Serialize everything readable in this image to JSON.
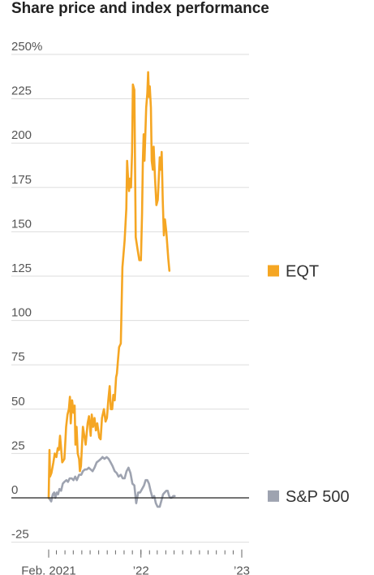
{
  "chart_data": {
    "type": "line",
    "title": "Share price and index performance",
    "y_unit_suffix": "%",
    "ylim": [
      -25,
      250
    ],
    "yticks": [
      250,
      225,
      200,
      175,
      150,
      125,
      100,
      75,
      50,
      25,
      0,
      -25
    ],
    "grid": true,
    "legend_placement": "right, at series end",
    "x_range": [
      "2021-02-01",
      "2023-01-01"
    ],
    "x_ticks": [
      {
        "date": "2021-02-01",
        "label": "Feb. 2021"
      },
      {
        "date": "2022-01-01",
        "label": "’22"
      },
      {
        "date": "2023-01-01",
        "label": "’23"
      }
    ],
    "series": [
      {
        "name": "EQT",
        "color": "#f5a623",
        "points": [
          [
            "2021-02-01",
            0
          ],
          [
            "2021-02-04",
            27
          ],
          [
            "2021-02-06",
            12
          ],
          [
            "2021-02-11",
            14
          ],
          [
            "2021-02-18",
            20
          ],
          [
            "2021-02-23",
            25
          ],
          [
            "2021-03-01",
            23
          ],
          [
            "2021-03-06",
            28
          ],
          [
            "2021-03-10",
            27
          ],
          [
            "2021-03-14",
            35
          ],
          [
            "2021-03-18",
            28
          ],
          [
            "2021-03-22",
            20
          ],
          [
            "2021-03-30",
            22
          ],
          [
            "2021-04-05",
            40
          ],
          [
            "2021-04-10",
            47
          ],
          [
            "2021-04-15",
            50
          ],
          [
            "2021-04-19",
            57
          ],
          [
            "2021-04-22",
            42
          ],
          [
            "2021-04-27",
            55
          ],
          [
            "2021-05-02",
            48
          ],
          [
            "2021-05-06",
            52
          ],
          [
            "2021-05-09",
            30
          ],
          [
            "2021-05-13",
            40
          ],
          [
            "2021-05-17",
            25
          ],
          [
            "2021-05-22",
            22
          ],
          [
            "2021-05-25",
            15
          ],
          [
            "2021-05-29",
            18
          ],
          [
            "2021-06-05",
            40
          ],
          [
            "2021-06-10",
            35
          ],
          [
            "2021-06-15",
            30
          ],
          [
            "2021-06-22",
            42
          ],
          [
            "2021-06-27",
            46
          ],
          [
            "2021-07-03",
            35
          ],
          [
            "2021-07-07",
            47
          ],
          [
            "2021-07-12",
            40
          ],
          [
            "2021-07-17",
            45
          ],
          [
            "2021-07-22",
            38
          ],
          [
            "2021-07-27",
            42
          ],
          [
            "2021-08-03",
            34
          ],
          [
            "2021-08-08",
            33
          ],
          [
            "2021-08-13",
            45
          ],
          [
            "2021-08-20",
            50
          ],
          [
            "2021-08-26",
            43
          ],
          [
            "2021-08-31",
            45
          ],
          [
            "2021-09-05",
            55
          ],
          [
            "2021-09-10",
            63
          ],
          [
            "2021-09-14",
            50
          ],
          [
            "2021-09-19",
            50
          ],
          [
            "2021-09-23",
            58
          ],
          [
            "2021-09-28",
            55
          ],
          [
            "2021-10-03",
            68
          ],
          [
            "2021-10-06",
            70
          ],
          [
            "2021-10-10",
            78
          ],
          [
            "2021-10-14",
            85
          ],
          [
            "2021-10-20",
            87
          ],
          [
            "2021-10-26",
            130
          ],
          [
            "2021-11-03",
            145
          ],
          [
            "2021-11-09",
            163
          ],
          [
            "2021-11-12",
            190
          ],
          [
            "2021-11-16",
            178
          ],
          [
            "2021-11-19",
            173
          ],
          [
            "2021-11-22",
            180
          ],
          [
            "2021-11-26",
            175
          ],
          [
            "2021-11-30",
            195
          ],
          [
            "2021-12-03",
            233
          ],
          [
            "2021-12-08",
            230
          ],
          [
            "2021-12-13",
            147
          ],
          [
            "2021-12-20",
            140
          ],
          [
            "2021-12-26",
            134
          ],
          [
            "2022-01-01",
            134
          ],
          [
            "2022-01-05",
            160
          ],
          [
            "2022-01-08",
            190
          ],
          [
            "2022-01-11",
            205
          ],
          [
            "2022-01-14",
            190
          ],
          [
            "2022-01-20",
            220
          ],
          [
            "2022-01-24",
            228
          ],
          [
            "2022-01-27",
            240
          ],
          [
            "2022-01-30",
            226
          ],
          [
            "2022-02-02",
            232
          ],
          [
            "2022-02-06",
            220
          ],
          [
            "2022-02-09",
            190
          ],
          [
            "2022-02-13",
            185
          ],
          [
            "2022-02-16",
            198
          ],
          [
            "2022-02-21",
            180
          ],
          [
            "2022-02-26",
            165
          ],
          [
            "2022-03-03",
            168
          ],
          [
            "2022-03-10",
            192
          ],
          [
            "2022-03-14",
            185
          ],
          [
            "2022-03-17",
            195
          ],
          [
            "2022-03-21",
            168
          ],
          [
            "2022-03-25",
            148
          ],
          [
            "2022-03-29",
            157
          ],
          [
            "2022-04-03",
            150
          ],
          [
            "2022-04-10",
            135
          ],
          [
            "2022-04-14",
            128
          ]
        ]
      },
      {
        "name": "S&P 500",
        "color": "#9ea3b0",
        "points": [
          [
            "2021-02-01",
            0
          ],
          [
            "2021-02-06",
            -1
          ],
          [
            "2021-02-10",
            -2
          ],
          [
            "2021-02-16",
            2
          ],
          [
            "2021-02-21",
            3
          ],
          [
            "2021-02-25",
            0
          ],
          [
            "2021-03-02",
            3
          ],
          [
            "2021-03-07",
            2
          ],
          [
            "2021-03-12",
            5
          ],
          [
            "2021-03-18",
            4
          ],
          [
            "2021-03-24",
            8
          ],
          [
            "2021-03-30",
            9
          ],
          [
            "2021-04-06",
            10
          ],
          [
            "2021-04-12",
            9
          ],
          [
            "2021-04-18",
            11
          ],
          [
            "2021-04-25",
            11
          ],
          [
            "2021-05-02",
            10
          ],
          [
            "2021-05-08",
            12
          ],
          [
            "2021-05-14",
            10
          ],
          [
            "2021-05-22",
            13
          ],
          [
            "2021-05-30",
            13
          ],
          [
            "2021-06-05",
            15
          ],
          [
            "2021-06-12",
            16
          ],
          [
            "2021-06-19",
            16
          ],
          [
            "2021-06-26",
            17
          ],
          [
            "2021-07-03",
            16
          ],
          [
            "2021-07-10",
            15
          ],
          [
            "2021-07-17",
            17
          ],
          [
            "2021-07-25",
            20
          ],
          [
            "2021-08-02",
            21
          ],
          [
            "2021-08-09",
            22
          ],
          [
            "2021-08-15",
            23
          ],
          [
            "2021-08-22",
            22
          ],
          [
            "2021-08-30",
            23
          ],
          [
            "2021-09-06",
            22
          ],
          [
            "2021-09-13",
            20
          ],
          [
            "2021-09-20",
            18
          ],
          [
            "2021-09-28",
            15
          ],
          [
            "2021-10-05",
            14
          ],
          [
            "2021-10-12",
            12
          ],
          [
            "2021-10-20",
            13
          ],
          [
            "2021-10-27",
            11
          ],
          [
            "2021-11-03",
            11
          ],
          [
            "2021-11-10",
            15
          ],
          [
            "2021-11-17",
            17
          ],
          [
            "2021-11-24",
            14
          ],
          [
            "2021-12-01",
            8
          ],
          [
            "2021-12-08",
            7
          ],
          [
            "2021-12-15",
            -3
          ],
          [
            "2021-12-22",
            3
          ],
          [
            "2021-12-29",
            3
          ],
          [
            "2022-01-05",
            5
          ],
          [
            "2022-01-12",
            7
          ],
          [
            "2022-01-18",
            10
          ],
          [
            "2022-01-24",
            10
          ],
          [
            "2022-01-30",
            8
          ],
          [
            "2022-02-05",
            4
          ],
          [
            "2022-02-12",
            0
          ],
          [
            "2022-02-18",
            1
          ],
          [
            "2022-02-24",
            -3
          ],
          [
            "2022-03-02",
            -5
          ],
          [
            "2022-03-10",
            -5
          ],
          [
            "2022-03-17",
            -1
          ],
          [
            "2022-03-22",
            2
          ],
          [
            "2022-03-28",
            3
          ],
          [
            "2022-04-03",
            4
          ],
          [
            "2022-04-08",
            4
          ],
          [
            "2022-04-13",
            1
          ],
          [
            "2022-04-18",
            0
          ],
          [
            "2022-04-22",
            0
          ],
          [
            "2022-04-28",
            1
          ],
          [
            "2022-05-03",
            1
          ]
        ]
      }
    ]
  }
}
